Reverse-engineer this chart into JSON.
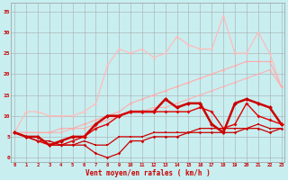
{
  "bg_color": "#c8eef0",
  "grid_color": "#aaaaaa",
  "xlabel": "Vent moyen/en rafales ( km/h )",
  "xlabel_color": "#cc0000",
  "tick_color": "#cc0000",
  "x_ticks": [
    0,
    1,
    2,
    3,
    4,
    5,
    6,
    7,
    8,
    9,
    10,
    11,
    12,
    13,
    14,
    15,
    16,
    17,
    18,
    19,
    20,
    21,
    22,
    23
  ],
  "y_ticks": [
    0,
    5,
    10,
    15,
    20,
    25,
    30,
    35
  ],
  "ylim": [
    -1,
    37
  ],
  "xlim": [
    -0.3,
    23.3
  ],
  "lines": [
    {
      "x": [
        0,
        1,
        2,
        3,
        4,
        5,
        6,
        7,
        8,
        9,
        10,
        11,
        12,
        13,
        14,
        15,
        16,
        17,
        18,
        19,
        20,
        21,
        22,
        23
      ],
      "y": [
        6,
        6,
        6,
        6,
        7,
        7,
        8,
        9,
        10,
        11,
        13,
        14,
        15,
        16,
        17,
        18,
        19,
        20,
        21,
        22,
        23,
        23,
        23,
        17
      ],
      "color": "#ffaaaa",
      "lw": 0.8,
      "marker": "o",
      "ms": 1.8
    },
    {
      "x": [
        0,
        1,
        2,
        3,
        4,
        5,
        6,
        7,
        8,
        9,
        10,
        11,
        12,
        13,
        14,
        15,
        16,
        17,
        18,
        19,
        20,
        21,
        22,
        23
      ],
      "y": [
        6,
        11,
        11,
        10,
        10,
        10,
        11,
        13,
        22,
        26,
        25,
        26,
        24,
        25,
        29,
        27,
        26,
        26,
        34,
        25,
        25,
        30,
        25,
        17
      ],
      "color": "#ffbbbb",
      "lw": 0.9,
      "marker": "^",
      "ms": 2.2
    },
    {
      "x": [
        0,
        1,
        2,
        3,
        4,
        5,
        6,
        7,
        8,
        9,
        10,
        11,
        12,
        13,
        14,
        15,
        16,
        17,
        18,
        19,
        20,
        21,
        22,
        23
      ],
      "y": [
        6,
        6,
        6,
        6,
        6,
        7,
        7,
        8,
        9,
        10,
        11,
        11,
        12,
        12,
        13,
        14,
        15,
        16,
        17,
        18,
        19,
        20,
        21,
        17
      ],
      "color": "#ffaaaa",
      "lw": 0.7,
      "marker": "o",
      "ms": 1.5
    },
    {
      "x": [
        0,
        1,
        2,
        3,
        4,
        5,
        6,
        7,
        8,
        9,
        10,
        11,
        12,
        13,
        14,
        15,
        16,
        17,
        18,
        19,
        20,
        21,
        22,
        23
      ],
      "y": [
        6,
        5,
        5,
        3,
        4,
        5,
        5,
        8,
        10,
        10,
        11,
        11,
        11,
        14,
        12,
        13,
        13,
        8,
        6,
        13,
        14,
        13,
        12,
        8
      ],
      "color": "#cc0000",
      "lw": 1.8,
      "marker": "D",
      "ms": 2.5
    },
    {
      "x": [
        0,
        1,
        2,
        3,
        4,
        5,
        6,
        7,
        8,
        9,
        10,
        11,
        12,
        13,
        14,
        15,
        16,
        17,
        18,
        19,
        20,
        21,
        22,
        23
      ],
      "y": [
        6,
        5,
        4,
        3,
        3,
        4,
        5,
        7,
        8,
        10,
        11,
        11,
        11,
        11,
        11,
        11,
        12,
        11,
        7,
        8,
        13,
        10,
        9,
        8
      ],
      "color": "#dd0000",
      "lw": 1.0,
      "marker": "D",
      "ms": 2.0
    },
    {
      "x": [
        0,
        1,
        2,
        3,
        4,
        5,
        6,
        7,
        8,
        9,
        10,
        11,
        12,
        13,
        14,
        15,
        16,
        17,
        18,
        19,
        20,
        21,
        22,
        23
      ],
      "y": [
        6,
        5,
        4,
        4,
        3,
        3,
        4,
        3,
        3,
        5,
        5,
        5,
        6,
        6,
        6,
        6,
        7,
        7,
        7,
        7,
        7,
        8,
        7,
        7
      ],
      "color": "#cc0000",
      "lw": 0.9,
      "marker": "s",
      "ms": 1.8
    },
    {
      "x": [
        0,
        1,
        2,
        3,
        4,
        5,
        6,
        7,
        8,
        9,
        10,
        11,
        12,
        13,
        14,
        15,
        16,
        17,
        18,
        19,
        20,
        21,
        22,
        23
      ],
      "y": [
        6,
        5,
        5,
        3,
        3,
        3,
        3,
        1,
        0,
        1,
        4,
        4,
        5,
        5,
        5,
        6,
        6,
        6,
        6,
        6,
        7,
        7,
        6,
        7
      ],
      "color": "#cc0000",
      "lw": 0.9,
      "marker": "D",
      "ms": 1.8
    }
  ]
}
